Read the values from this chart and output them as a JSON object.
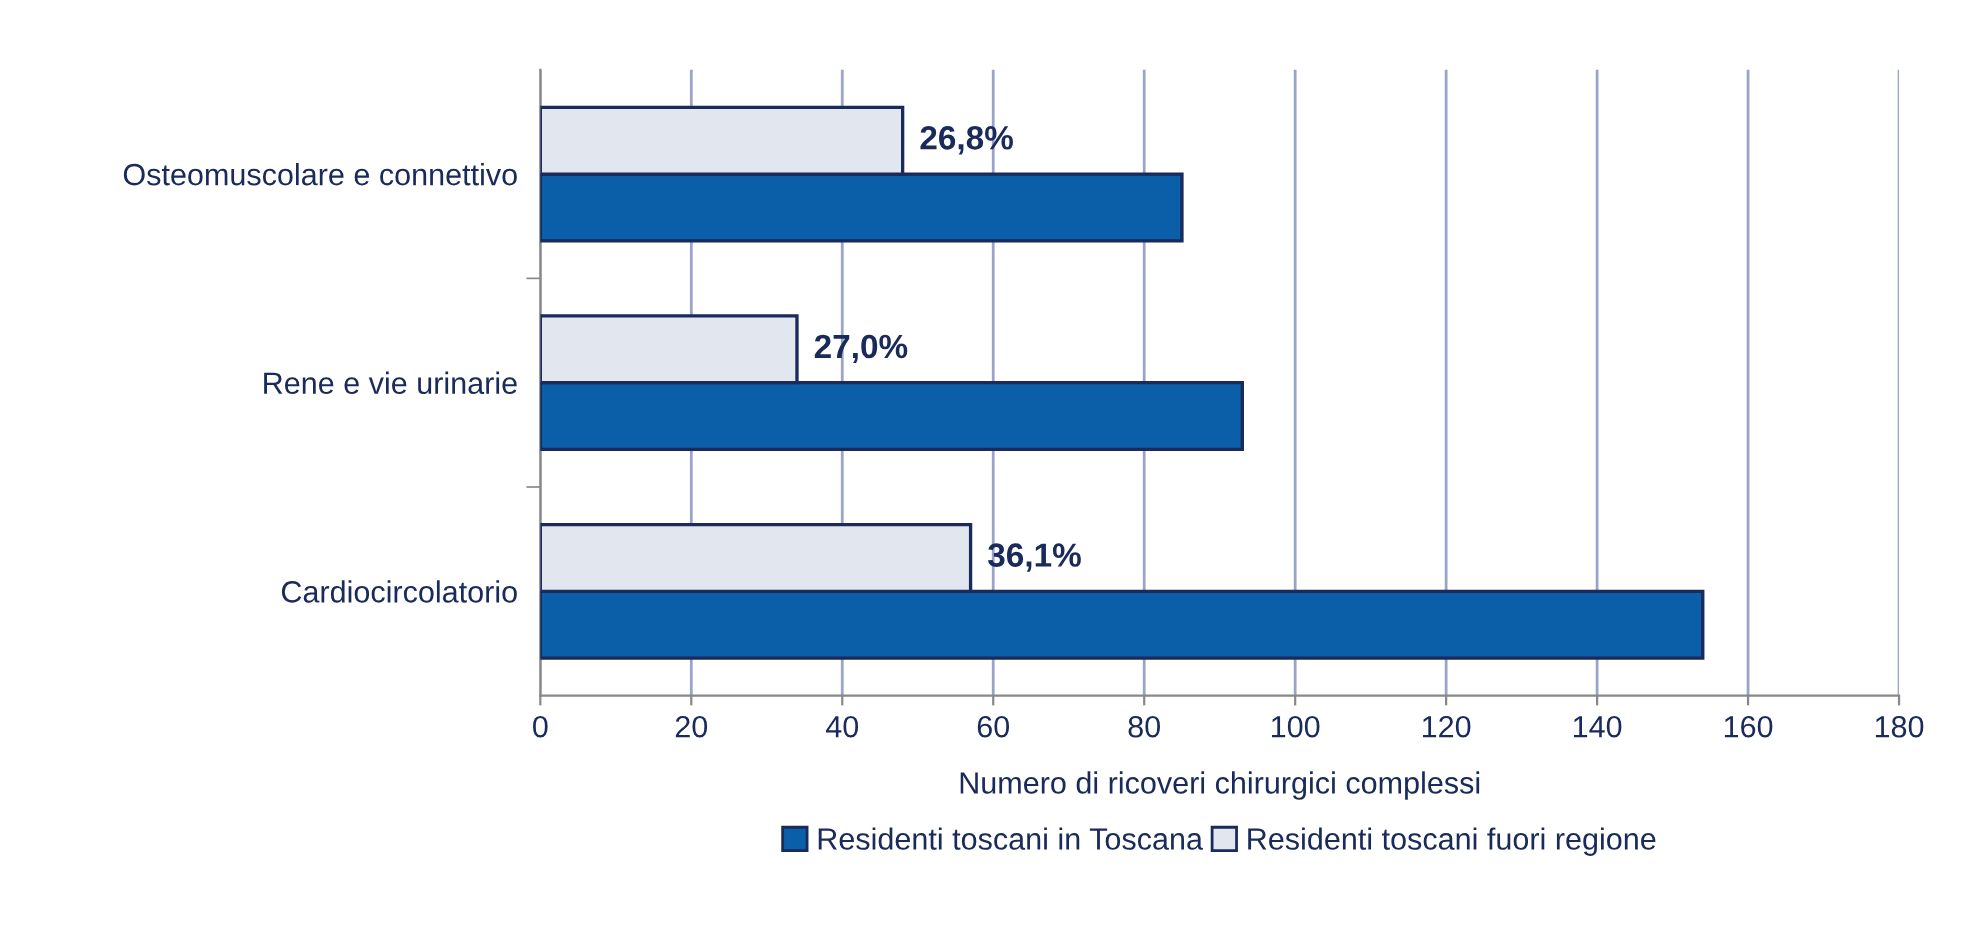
{
  "chart_data": {
    "type": "bar",
    "orientation": "horizontal",
    "xlabel": "Numero di ricoveri chirurgici complessi",
    "categories": [
      "Osteomuscolare e connettivo",
      "Rene e vie urinarie",
      "Cardiocircolatorio"
    ],
    "series": [
      {
        "name": "Residenti toscani in Toscana",
        "color": "#0b5ea8",
        "values": [
          85,
          93,
          154
        ]
      },
      {
        "name": "Residenti toscani fuori regione",
        "color": "#e2e7ef",
        "values": [
          48,
          34,
          57
        ]
      }
    ],
    "annotations": [
      {
        "text": "26,8%",
        "x": 48,
        "y": "Osteomuscolare e connettivo"
      },
      {
        "text": "27,0%",
        "x": 34,
        "y": "Rene e vie urinarie"
      },
      {
        "text": "36,1%",
        "x": 57,
        "y": "Cardiocircolatorio"
      }
    ],
    "xlim": [
      0,
      180
    ],
    "xticks": [
      0,
      20,
      40,
      60,
      80,
      100,
      120,
      140,
      160,
      180
    ],
    "grid": "x",
    "legend": "bottom"
  }
}
